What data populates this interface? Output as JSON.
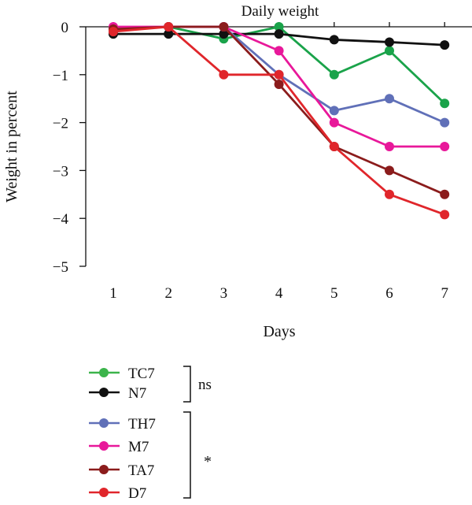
{
  "chart_data": {
    "type": "line",
    "title": "Daily weight",
    "xlabel": "Days",
    "ylabel": "Weight in percent",
    "x": [
      1,
      2,
      3,
      4,
      5,
      6,
      7
    ],
    "x_tick_labels": [
      "1",
      "2",
      "3",
      "4",
      "5",
      "6",
      "7"
    ],
    "ylim": [
      -5,
      0
    ],
    "y_ticks": [
      0,
      -1,
      -2,
      -3,
      -4,
      -5
    ],
    "y_tick_labels": [
      "0",
      "−1",
      "−2",
      "−3",
      "−4",
      "−5"
    ],
    "grid": false,
    "legend_position": "bottom-left",
    "series": [
      {
        "name": "TC7",
        "color": "#1aa34a",
        "legend_color": "#3cb44b",
        "values": [
          -0.05,
          0,
          -0.25,
          0,
          -1,
          -0.5,
          -1.6
        ]
      },
      {
        "name": "N7",
        "color": "#111111",
        "legend_color": "#111111",
        "values": [
          -0.15,
          -0.15,
          -0.15,
          -0.15,
          -0.27,
          -0.32,
          -0.38
        ]
      },
      {
        "name": "TH7",
        "color": "#6070b8",
        "legend_color": "#6070b8",
        "values": [
          -0.05,
          0,
          0,
          -1,
          -1.75,
          -1.5,
          -2
        ]
      },
      {
        "name": "M7",
        "color": "#e8189a",
        "legend_color": "#e8189a",
        "values": [
          0,
          0,
          0,
          -0.5,
          -2,
          -2.5,
          -2.5
        ]
      },
      {
        "name": "TA7",
        "color": "#8b1c1c",
        "legend_color": "#8b1c1c",
        "values": [
          -0.05,
          0,
          0,
          -1.2,
          -2.5,
          -3,
          -3.5
        ]
      },
      {
        "name": "D7",
        "color": "#e0262b",
        "legend_color": "#e0262b",
        "values": [
          -0.1,
          0,
          -1,
          -1,
          -2.5,
          -3.5,
          -3.92
        ]
      }
    ],
    "annotations": [
      {
        "label": "ns",
        "groups": [
          "TC7",
          "N7"
        ]
      },
      {
        "label": "*",
        "groups": [
          "TH7",
          "M7",
          "TA7",
          "D7"
        ]
      }
    ]
  }
}
